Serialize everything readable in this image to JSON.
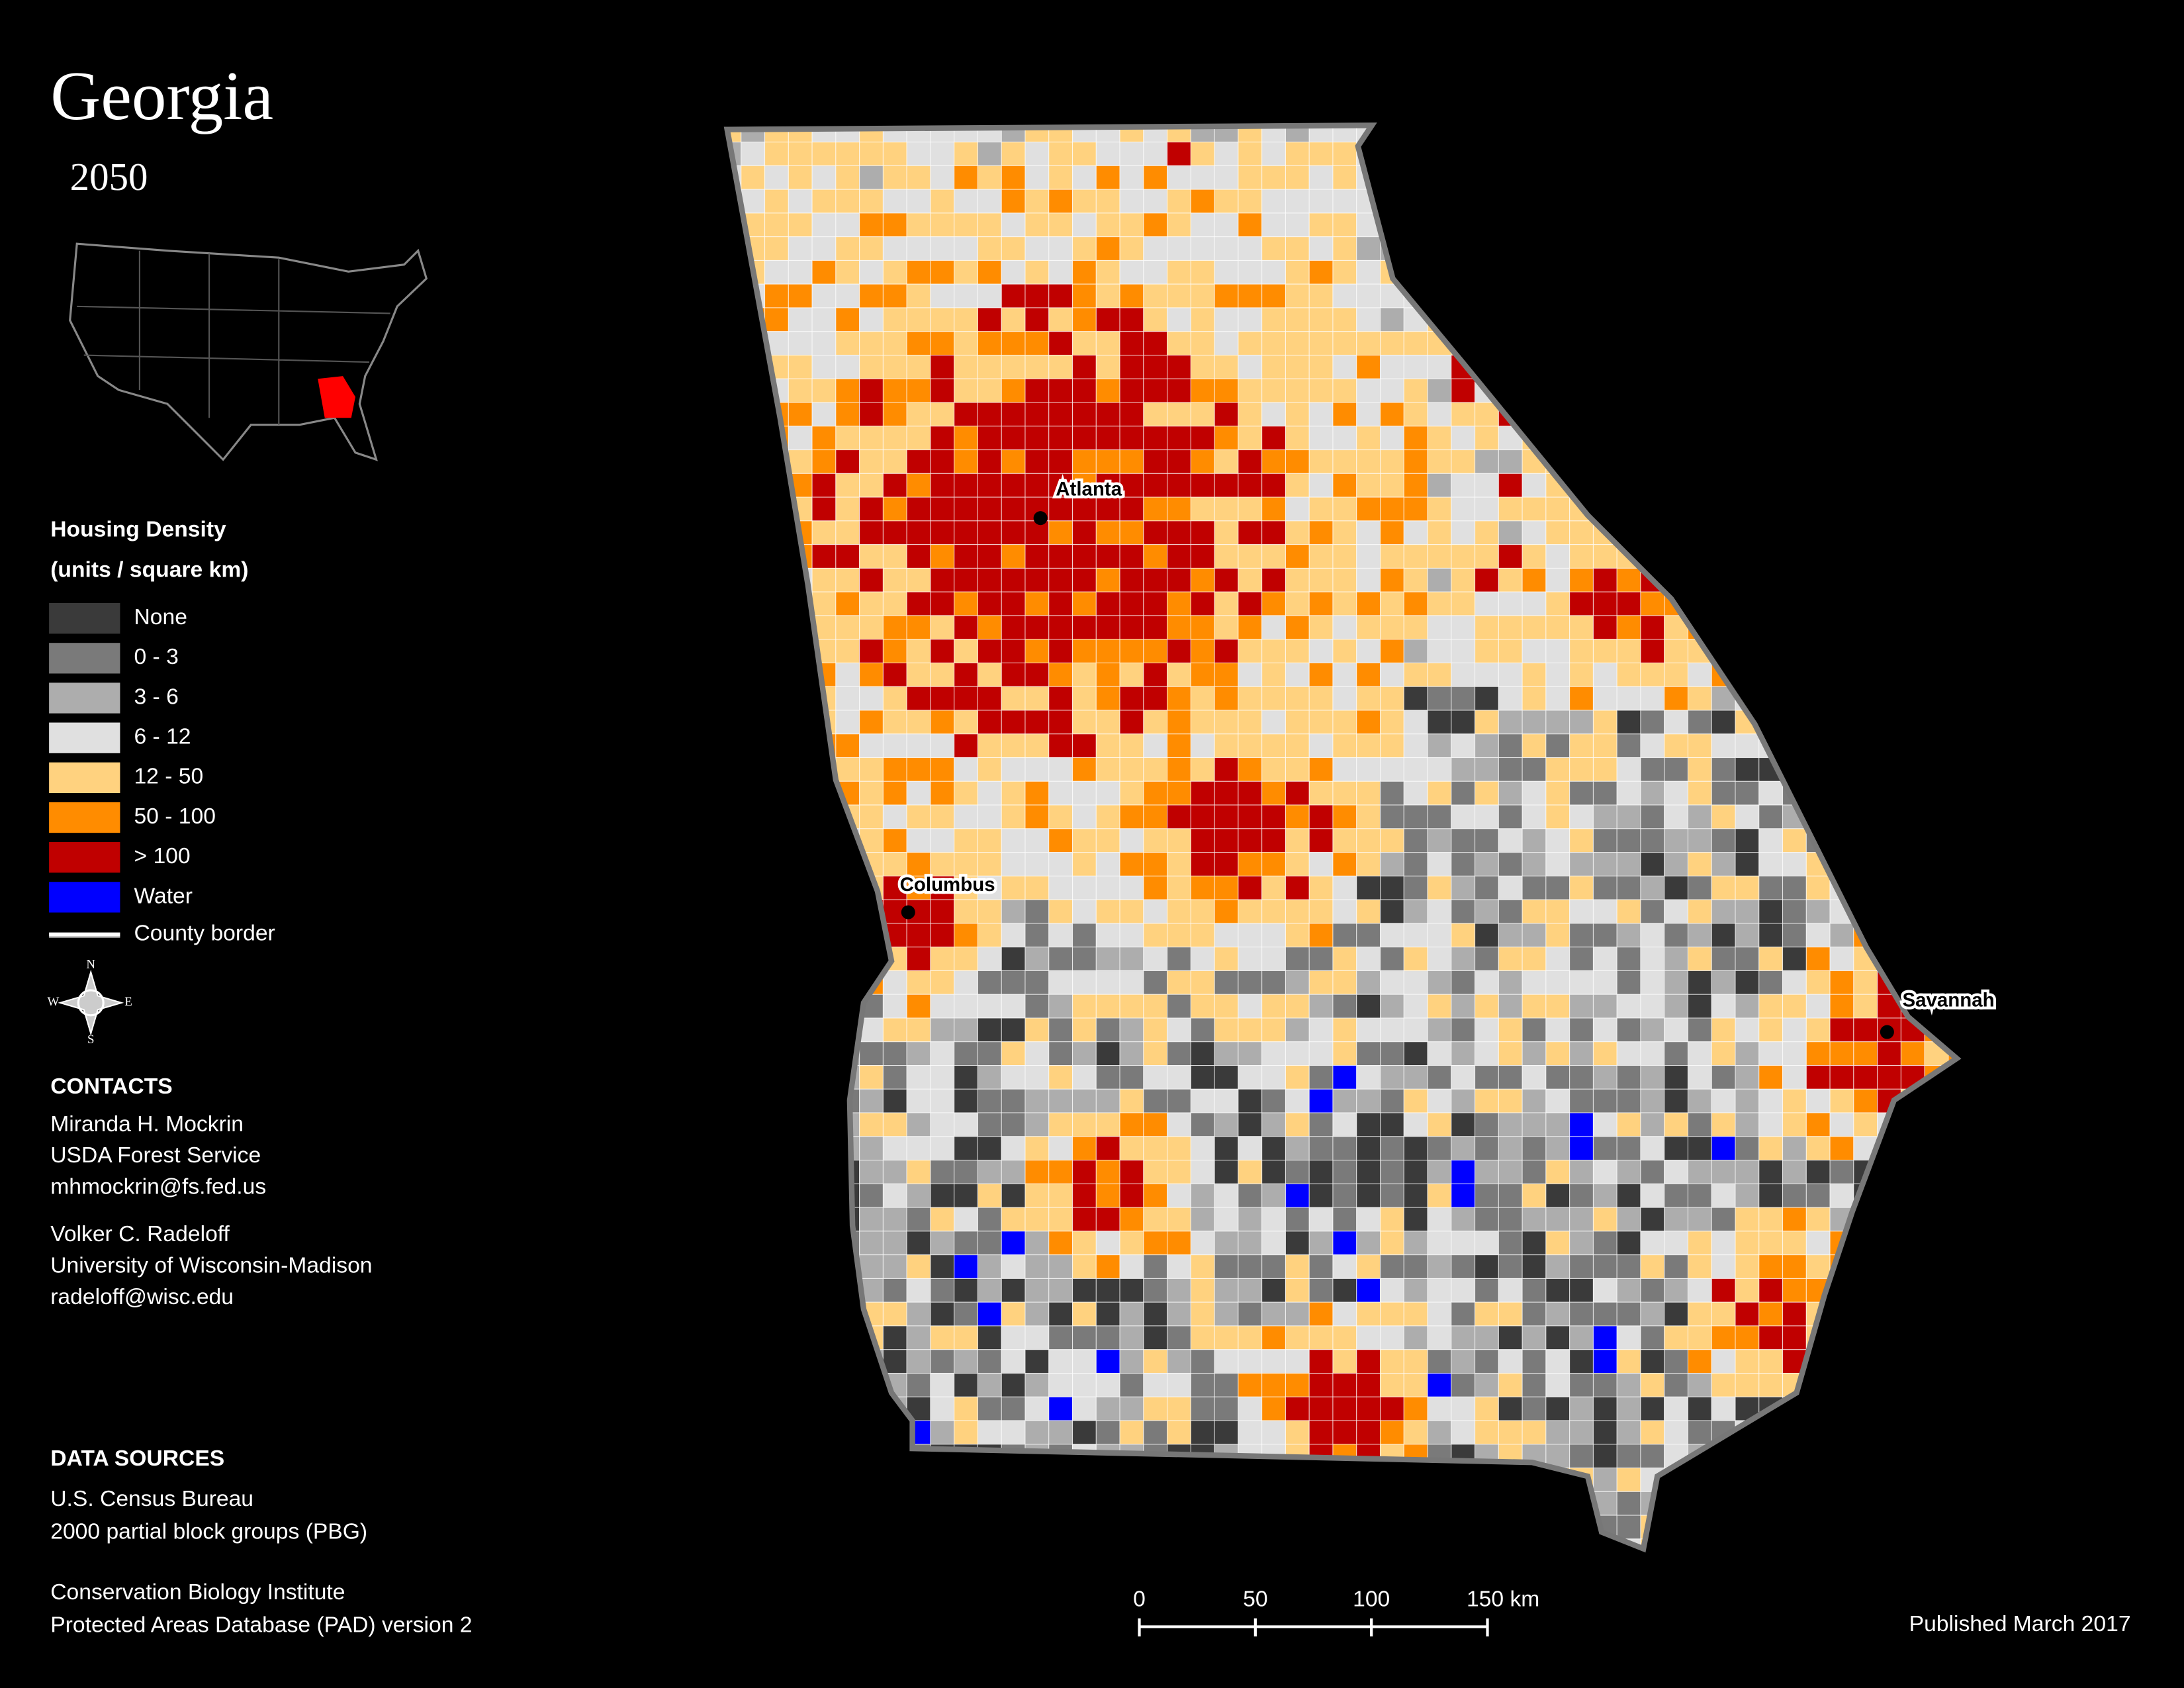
{
  "title": "Georgia",
  "subtitle": "2050",
  "legend": {
    "title": "Housing Density",
    "subtitle": "(units / square km)",
    "items": [
      {
        "label": "None",
        "color": "#3a3a3a"
      },
      {
        "label": "0 - 3",
        "color": "#7a7a7a"
      },
      {
        "label": "3 - 6",
        "color": "#adadad"
      },
      {
        "label": "6 - 12",
        "color": "#e0e0e0"
      },
      {
        "label": "12 - 50",
        "color": "#ffd27f"
      },
      {
        "label": "50 - 100",
        "color": "#ff8c00"
      },
      {
        "label": "> 100",
        "color": "#c00000"
      },
      {
        "label": "Water",
        "color": "#0000ff"
      },
      {
        "label": "County border",
        "color": "#ffffff"
      }
    ]
  },
  "compass": [
    "N",
    "E",
    "S",
    "W"
  ],
  "cities": [
    "Atlanta",
    "Columbus",
    "Savannah"
  ],
  "contacts": {
    "heading": "CONTACTS",
    "people": [
      [
        "Miranda H. Mockrin",
        "USDA Forest Service",
        "mhmockrin@fs.fed.us"
      ],
      [
        "Volker C. Radeloff",
        "University of Wisconsin-Madison",
        "radeloff@wisc.edu"
      ]
    ]
  },
  "data_sources": {
    "heading": "DATA SOURCES",
    "groups": [
      [
        "U.S. Census Bureau",
        "2000 partial block groups (PBG)"
      ],
      [
        "Conservation Biology Institute",
        "Protected Areas Database (PAD) version 2"
      ]
    ]
  },
  "scale_bar": {
    "ticks": [
      0,
      50,
      100,
      {
        "value": 150,
        "label": "150 km"
      }
    ]
  },
  "published": "Published March 2017"
}
